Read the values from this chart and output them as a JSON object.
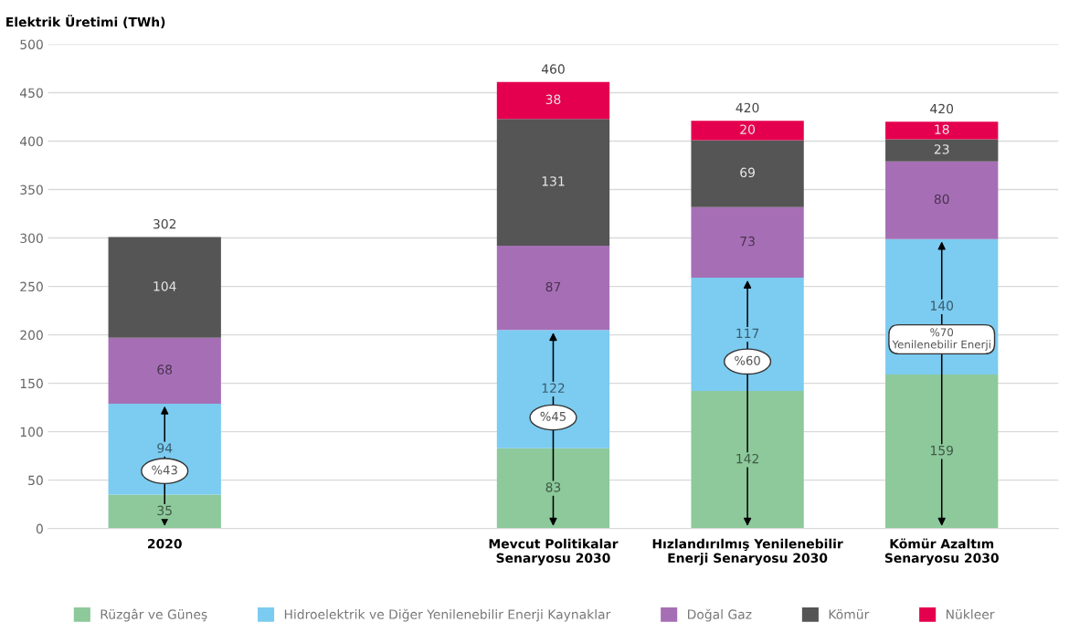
{
  "chart_data": {
    "type": "bar",
    "stacked": true,
    "ylabel": "Elektrik Üretimi (TWh)",
    "categories": [
      "2020",
      null,
      "Mevcut Politikalar\nSenaryosu 2030",
      "Hızlandırılmış Yenilenebilir\nEnerji Senaryosu 2030",
      "Kömür Azaltım\nSenaryosu 2030"
    ],
    "series": [
      {
        "name": "Rüzgâr ve Güneş",
        "color": "#8dc99b",
        "values": [
          35,
          null,
          83,
          142,
          159
        ]
      },
      {
        "name": "Hidroelektrik ve Diğer Yenilenebilir Enerji Kaynaklar",
        "color": "#7ccbf0",
        "values": [
          94,
          null,
          122,
          117,
          140
        ]
      },
      {
        "name": "Doğal Gaz",
        "color": "#a66fb5",
        "values": [
          68,
          null,
          87,
          73,
          80
        ]
      },
      {
        "name": "Kömür",
        "color": "#555555",
        "values": [
          104,
          null,
          131,
          69,
          23
        ]
      },
      {
        "name": "Nükleer",
        "color": "#e5004f",
        "values": [
          null,
          null,
          38,
          20,
          18
        ]
      }
    ],
    "totals": [
      "302",
      null,
      "460",
      "420",
      "420"
    ],
    "data_labels": true,
    "ylim": [
      0,
      500
    ],
    "yticks": [
      0,
      50,
      100,
      150,
      200,
      250,
      300,
      350,
      400,
      450,
      500
    ],
    "grid": "y",
    "legend": "bottom",
    "annotations": [
      "%43",
      "%45",
      "%60",
      "%70\nYenilenebilir Enerji"
    ]
  }
}
